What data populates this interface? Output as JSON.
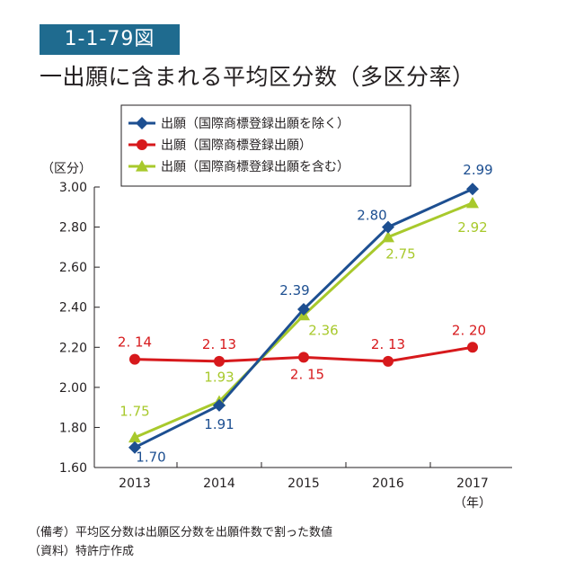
{
  "figure": {
    "number": "1-1-79図",
    "title": "一出願に含まれる平均区分数（多区分率）"
  },
  "colors": {
    "badge": "#1f6b8f",
    "series_blue": "#1d4f91",
    "series_red": "#d7191c",
    "series_green": "#a8c92c"
  },
  "notes": {
    "biko": "（備考）平均区分数は出願区分数を出願件数で割った数値",
    "source": "（資料）特許庁作成"
  },
  "chart_data": {
    "type": "line",
    "title": "一出願に含まれる平均区分数（多区分率）",
    "ylabel": "（区分）",
    "xlabel": "（年）",
    "categories": [
      "2013",
      "2014",
      "2015",
      "2016",
      "2017"
    ],
    "ylim": [
      1.6,
      3.0
    ],
    "yticks": [
      "1.60",
      "1.80",
      "2.00",
      "2.20",
      "2.40",
      "2.60",
      "2.80",
      "3.00"
    ],
    "grid": false,
    "legend_position": "top",
    "series": [
      {
        "name": "出願（国際商標登録出願を除く）",
        "marker": "diamond",
        "color": "#1d4f91",
        "values": [
          1.7,
          1.91,
          2.39,
          2.8,
          2.99
        ],
        "labels": [
          "1.70",
          "1.91",
          "2.39",
          "2.80",
          "2.99"
        ]
      },
      {
        "name": "出願（国際商標登録出願）",
        "marker": "circle",
        "color": "#d7191c",
        "values": [
          2.14,
          2.13,
          2.15,
          2.13,
          2.2
        ],
        "labels": [
          "2. 14",
          "2. 13",
          "2. 15",
          "2. 13",
          "2. 20"
        ]
      },
      {
        "name": "出願（国際商標登録出願を含む）",
        "marker": "triangle",
        "color": "#a8c92c",
        "values": [
          1.75,
          1.93,
          2.36,
          2.75,
          2.92
        ],
        "labels": [
          "1.75",
          "1.93",
          "2.36",
          "2.75",
          "2.92"
        ]
      }
    ]
  }
}
